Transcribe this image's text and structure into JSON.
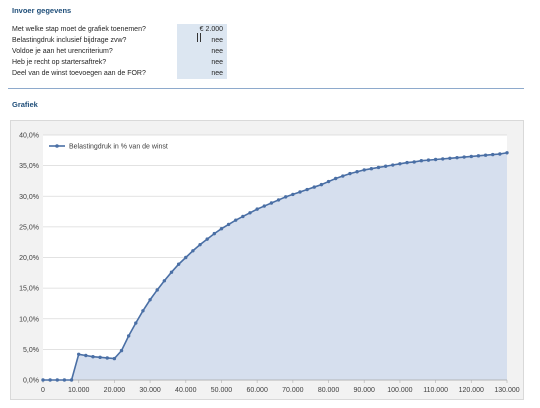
{
  "header": {
    "input_title": "Invoer gegevens",
    "chart_title": "Grafiek"
  },
  "form": {
    "rows": [
      {
        "label": "Met welke stap moet de grafiek toenemen?",
        "value": "€ 2.000"
      },
      {
        "label": "Belastingdruk inclusief bijdrage zvw?",
        "value": "nee"
      },
      {
        "label": "Voldoe je aan het urencriterium?",
        "value": "nee"
      },
      {
        "label": "Heb je recht op startersaftrek?",
        "value": "nee"
      },
      {
        "label": "Deel van de winst toevoegen aan de FOR?",
        "value": "nee"
      }
    ]
  },
  "chart_data": {
    "type": "area",
    "title": "",
    "xlabel": "",
    "ylabel": "",
    "series": [
      {
        "name": "Belastingdruk in % van de winst",
        "x": [
          0,
          2000,
          4000,
          6000,
          8000,
          10000,
          12000,
          14000,
          16000,
          18000,
          20000,
          22000,
          24000,
          26000,
          28000,
          30000,
          32000,
          34000,
          36000,
          38000,
          40000,
          42000,
          44000,
          46000,
          48000,
          50000,
          52000,
          54000,
          56000,
          58000,
          60000,
          62000,
          64000,
          66000,
          68000,
          70000,
          72000,
          74000,
          76000,
          78000,
          80000,
          82000,
          84000,
          86000,
          88000,
          90000,
          92000,
          94000,
          96000,
          98000,
          100000,
          102000,
          104000,
          106000,
          108000,
          110000,
          112000,
          114000,
          116000,
          118000,
          120000,
          122000,
          124000,
          126000,
          128000,
          130000
        ],
        "values": [
          0,
          0,
          0,
          0,
          0,
          4.2,
          4.0,
          3.8,
          3.7,
          3.6,
          3.5,
          4.8,
          7.2,
          9.3,
          11.3,
          13.1,
          14.7,
          16.2,
          17.6,
          18.9,
          20.0,
          21.1,
          22.1,
          23.0,
          23.9,
          24.7,
          25.4,
          26.1,
          26.7,
          27.3,
          27.9,
          28.4,
          28.9,
          29.4,
          29.9,
          30.3,
          30.7,
          31.1,
          31.5,
          31.9,
          32.4,
          32.9,
          33.3,
          33.7,
          34.0,
          34.3,
          34.5,
          34.7,
          34.9,
          35.1,
          35.3,
          35.5,
          35.6,
          35.8,
          35.9,
          36.0,
          36.1,
          36.2,
          36.3,
          36.4,
          36.5,
          36.6,
          36.7,
          36.8,
          36.9,
          37.1
        ]
      }
    ],
    "xlim": [
      0,
      130000
    ],
    "ylim": [
      0,
      40
    ],
    "x_ticks": [
      "0",
      "10.000",
      "20.000",
      "30.000",
      "40.000",
      "50.000",
      "60.000",
      "70.000",
      "80.000",
      "90.000",
      "100.000",
      "110.000",
      "120.000",
      "130.000"
    ],
    "y_ticks": [
      "0,0%",
      "5,0%",
      "10,0%",
      "15,0%",
      "20,0%",
      "25,0%",
      "30,0%",
      "35,0%",
      "40,0%"
    ],
    "grid": true,
    "legend": "top-left",
    "colors": {
      "line": "#4a6fa5",
      "fill": "#d6dfee",
      "grid": "#d9d9d9"
    }
  }
}
